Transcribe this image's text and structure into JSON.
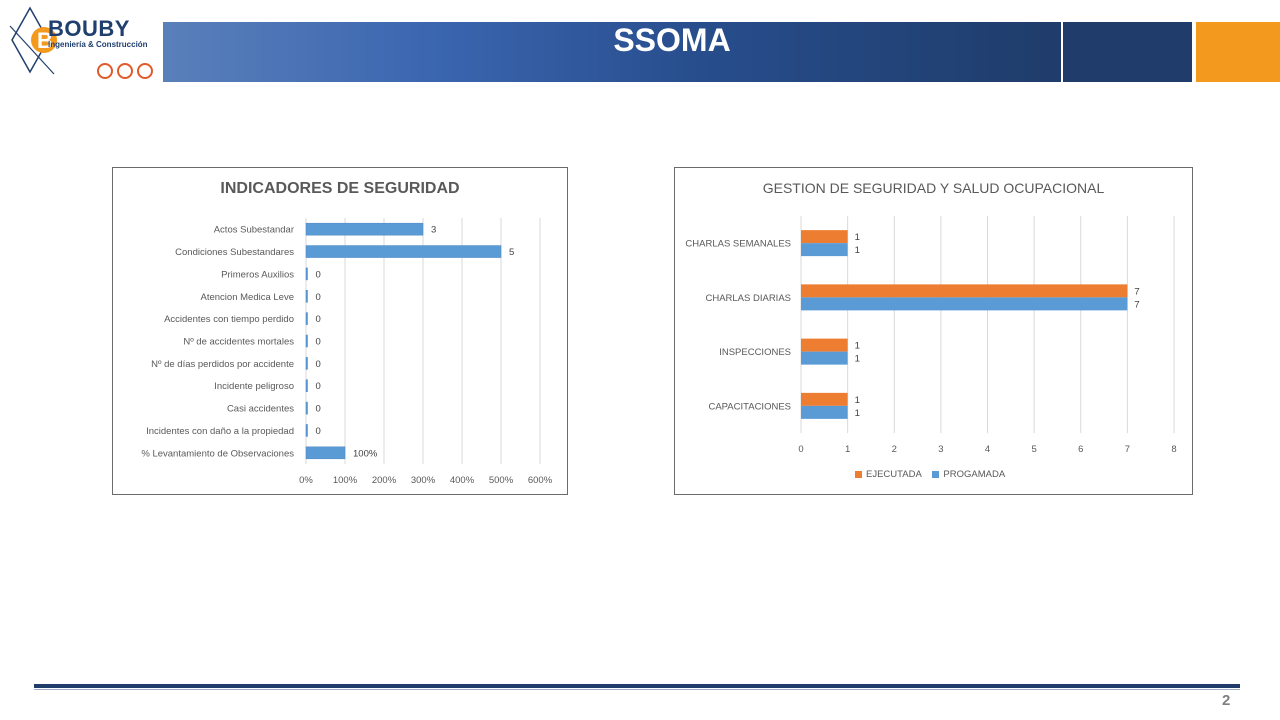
{
  "header": {
    "brand": "BOUBY",
    "brand_sub": "Ingeniería & Construcción",
    "title": "SSOMA",
    "bar_colors": {
      "gradient_start": "#5a80ba",
      "gradient_end": "#1f3c6a",
      "accent": "#f39a1e"
    }
  },
  "chart_data": [
    {
      "type": "bar",
      "orientation": "horizontal",
      "title": "INDICADORES DE SEGURIDAD",
      "categories": [
        "Actos Subestandar",
        "Condiciones Subestandares",
        "Primeros Auxilios",
        "Atencion Medica Leve",
        "Accidentes con tiempo perdido",
        "Nº de accidentes mortales",
        "Nº de días perdidos por accidente",
        "Incidente peligroso",
        "Casi accidentes",
        "Incidentes con daño a la propiedad",
        "% Levantamiento de Observaciones"
      ],
      "values": [
        3,
        5,
        0,
        0,
        0,
        0,
        0,
        0,
        0,
        0,
        1
      ],
      "data_labels": [
        "3",
        "5",
        "0",
        "0",
        "0",
        "0",
        "0",
        "0",
        "0",
        "0",
        "100%"
      ],
      "xlim": [
        0,
        6
      ],
      "x_ticks": [
        "0%",
        "100%",
        "200%",
        "300%",
        "400%",
        "500%",
        "600%"
      ],
      "grid": true,
      "color": "#5b9bd5"
    },
    {
      "type": "bar",
      "orientation": "horizontal",
      "title": "GESTION DE SEGURIDAD Y SALUD OCUPACIONAL",
      "categories": [
        "CHARLAS SEMANALES",
        "CHARLAS DIARIAS",
        "INSPECCIONES",
        "CAPACITACIONES"
      ],
      "series": [
        {
          "name": "EJECUTADA",
          "values": [
            1,
            7,
            1,
            1
          ],
          "color": "#ed7d31"
        },
        {
          "name": "PROGAMADA",
          "values": [
            1,
            7,
            1,
            1
          ],
          "color": "#5b9bd5"
        }
      ],
      "xlim": [
        0,
        8
      ],
      "x_ticks": [
        "0",
        "1",
        "2",
        "3",
        "4",
        "5",
        "6",
        "7",
        "8"
      ],
      "grid": true,
      "legend_position": "bottom"
    }
  ],
  "footer": {
    "page_number": "2"
  }
}
